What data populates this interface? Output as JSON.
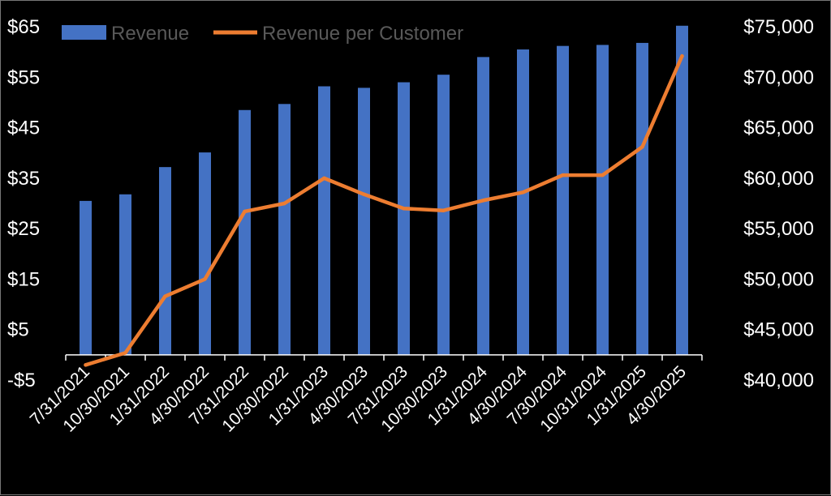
{
  "chart_data": {
    "type": "bar",
    "title": "",
    "xlabel": "",
    "ylabel": "",
    "categories": [
      "7/31/2021",
      "10/30/2021",
      "1/31/2022",
      "4/30/2022",
      "7/31/2022",
      "10/30/2022",
      "1/31/2023",
      "4/30/2023",
      "7/31/2023",
      "10/30/2023",
      "1/31/2024",
      "4/30/2024",
      "7/30/2024",
      "10/31/2024",
      "1/31/2025",
      "4/30/2025"
    ],
    "series": [
      {
        "name": "Revenue",
        "type": "bar",
        "axis": "left",
        "color": "#4472C4",
        "values": [
          30.5,
          31.8,
          37.2,
          40.1,
          48.5,
          49.7,
          53.2,
          52.9,
          54.0,
          55.5,
          59.0,
          60.5,
          61.2,
          61.4,
          61.8,
          65.2
        ]
      },
      {
        "name": "Revenue per Customer",
        "type": "line",
        "axis": "right",
        "color": "#ED7D31",
        "values": [
          41500,
          42700,
          48300,
          50000,
          56700,
          57500,
          60000,
          58400,
          57000,
          56800,
          57800,
          58600,
          60300,
          60300,
          63100,
          72100
        ]
      }
    ],
    "y_left": {
      "min": -5,
      "max": 65,
      "ticks": [
        "$65",
        "$55",
        "$45",
        "$35",
        "$25",
        "$15",
        "$5",
        "-$5"
      ]
    },
    "y_right": {
      "min": 40000,
      "max": 75000,
      "ticks": [
        "$75,000",
        "$70,000",
        "$65,000",
        "$60,000",
        "$55,000",
        "$50,000",
        "$45,000",
        "$40,000"
      ]
    },
    "grid": false,
    "legend_position": "top-left"
  }
}
